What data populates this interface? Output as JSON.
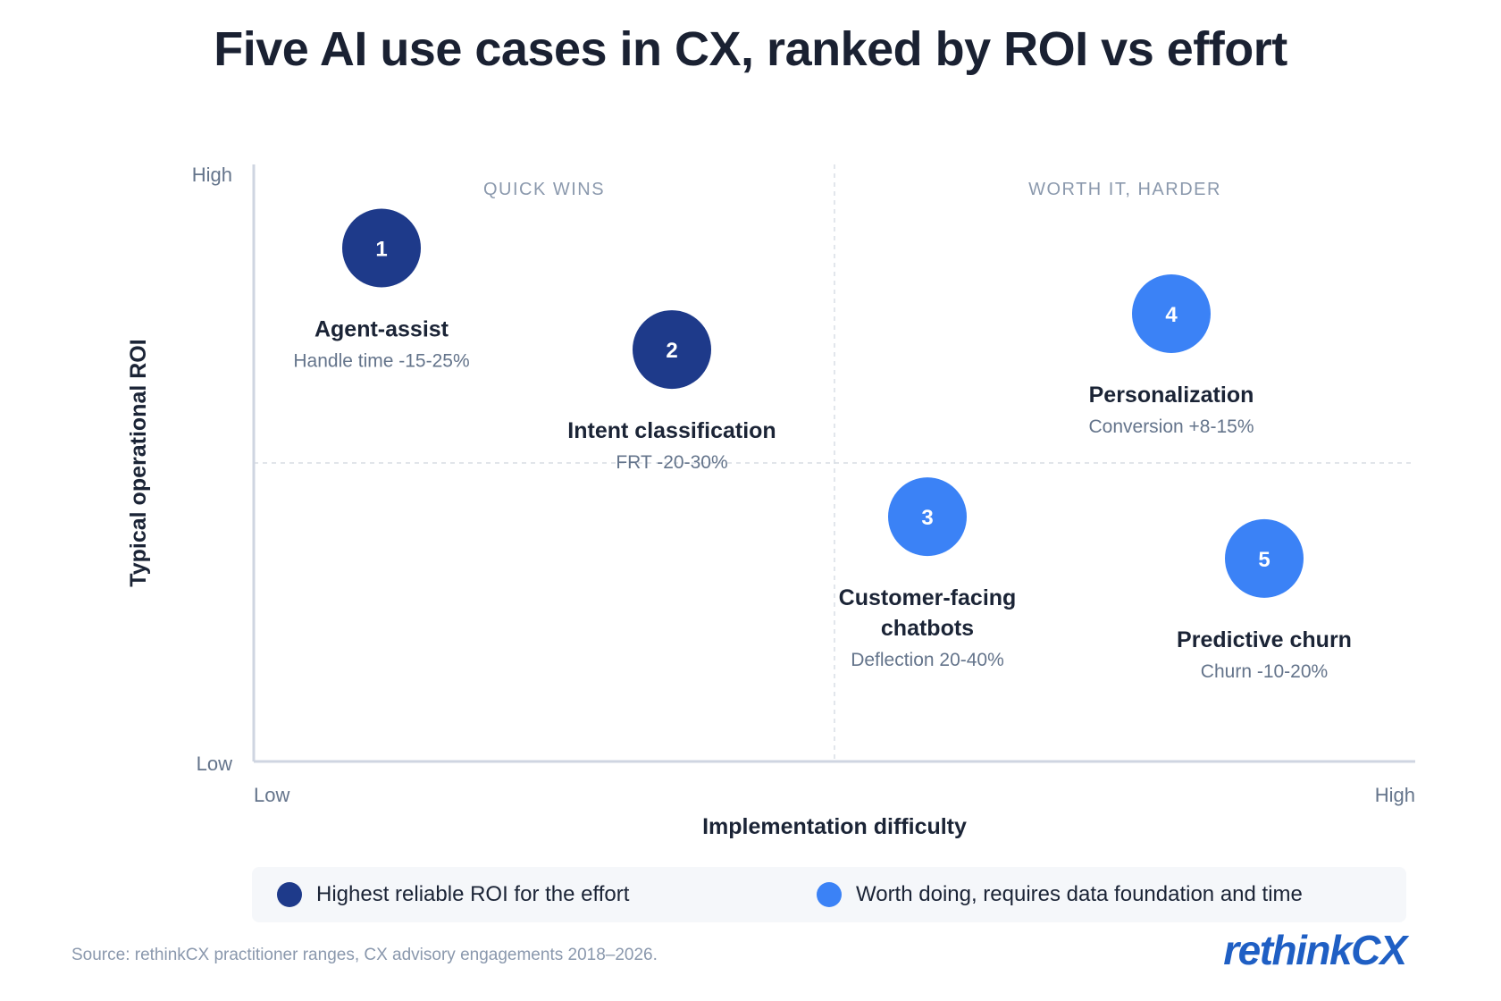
{
  "title": "Five AI use cases in CX, ranked by ROI vs effort",
  "chart_data": {
    "type": "scatter",
    "xlabel": "Implementation difficulty",
    "ylabel": "Typical operational ROI",
    "x_ticks": {
      "low": "Low",
      "high": "High"
    },
    "y_ticks": {
      "low": "Low",
      "high": "High"
    },
    "xlim": [
      0,
      10
    ],
    "ylim": [
      0,
      10
    ],
    "grid": false,
    "quadrant_labels": {
      "top_left": "QUICK WINS",
      "top_right": "WORTH IT, HARDER"
    },
    "points": [
      {
        "number": "1",
        "name": "Agent-assist",
        "metric": "Handle time -15-25%",
        "x": 1.1,
        "y": 8.6,
        "group": 0
      },
      {
        "number": "2",
        "name": "Intent classification",
        "metric": "FRT -20-30%",
        "x": 3.6,
        "y": 6.9,
        "group": 0
      },
      {
        "number": "3",
        "name": [
          "Customer-facing",
          "chatbots"
        ],
        "metric": "Deflection 20-40%",
        "x": 5.8,
        "y": 4.1,
        "group": 1
      },
      {
        "number": "4",
        "name": "Personalization",
        "metric": "Conversion +8-15%",
        "x": 7.9,
        "y": 7.5,
        "group": 1
      },
      {
        "number": "5",
        "name": "Predictive churn",
        "metric": "Churn -10-20%",
        "x": 8.7,
        "y": 3.4,
        "group": 1
      }
    ],
    "legend": [
      {
        "label": "Highest reliable ROI for the effort",
        "color": "#1e3a8a"
      },
      {
        "label": "Worth doing, requires data foundation and time",
        "color": "#3b82f6"
      }
    ]
  },
  "source": "Source: rethinkCX practitioner ranges, CX advisory engagements 2018–2026.",
  "brand": {
    "part1": "rethink",
    "part2": "CX"
  }
}
